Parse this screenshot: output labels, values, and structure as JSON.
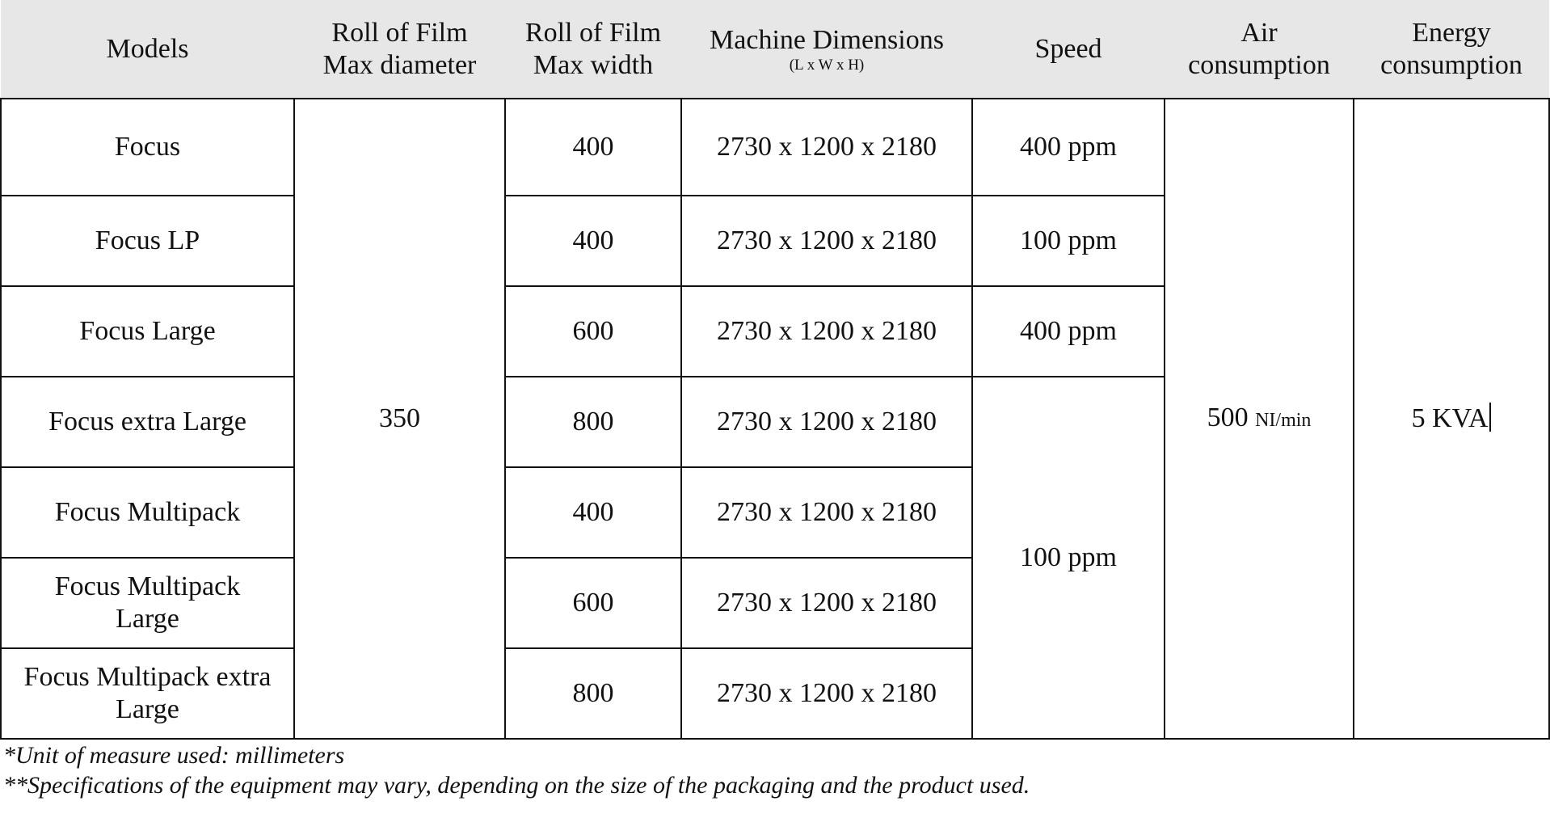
{
  "table": {
    "headers": {
      "models": "Models",
      "diameter_line1": "Roll of Film",
      "diameter_line2": "Max diameter",
      "width_line1": "Roll of Film",
      "width_line2": "Max width",
      "dimensions_line1": "Machine Dimensions",
      "dimensions_line2": "(L x W x H)",
      "speed": "Speed",
      "air_line1": "Air",
      "air_line2": "consumption",
      "energy_line1": "Energy",
      "energy_line2": "consumption"
    },
    "rows": [
      {
        "model": "Focus",
        "width": "400",
        "dimensions": "2730 x 1200 x 2180",
        "speed": "400 ppm"
      },
      {
        "model": "Focus LP",
        "width": "400",
        "dimensions": "2730 x 1200 x 2180",
        "speed": "100 ppm"
      },
      {
        "model": "Focus Large",
        "width": "600",
        "dimensions": "2730 x 1200 x 2180",
        "speed": "400 ppm"
      },
      {
        "model": "Focus extra Large",
        "width": "800",
        "dimensions": "2730 x 1200 x 2180"
      },
      {
        "model": "Focus Multipack",
        "width": "400",
        "dimensions": "2730 x 1200 x 2180"
      },
      {
        "model_line1": "Focus Multipack",
        "model_line2": "Large",
        "width": "600",
        "dimensions": "2730 x 1200 x 2180"
      },
      {
        "model_line1": "Focus Multipack extra",
        "model_line2": "Large",
        "width": "800",
        "dimensions": "2730 x 1200 x 2180"
      }
    ],
    "shared": {
      "max_diameter": "350",
      "speed_multi": "100 ppm",
      "air_value": "500",
      "air_unit": "NI/min",
      "energy": "5 KVA"
    }
  },
  "footnotes": {
    "unit_note": "*Unit of measure used: millimeters",
    "spec_note": "**Specifications of the equipment may vary, depending on the size of the packaging and the product used."
  }
}
